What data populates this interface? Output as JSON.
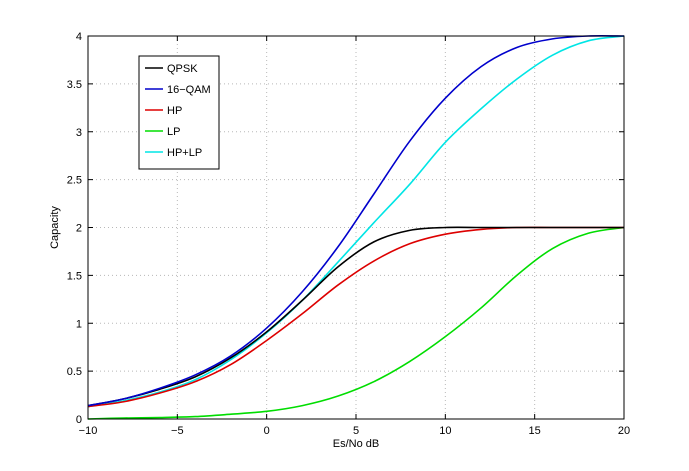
{
  "chart_data": {
    "type": "line",
    "title": "",
    "xlabel": "Es/No dB",
    "ylabel": "Capacity",
    "xlim": [
      -10,
      20
    ],
    "ylim": [
      0,
      4
    ],
    "xticks": [
      -10,
      -5,
      0,
      5,
      10,
      15,
      20
    ],
    "yticks": [
      0,
      0.5,
      1,
      1.5,
      2,
      2.5,
      3,
      3.5,
      4
    ],
    "xtick_labels": [
      "−10",
      "−5",
      "0",
      "5",
      "10",
      "15",
      "20"
    ],
    "ytick_labels": [
      "0",
      "0.5",
      "1",
      "1.5",
      "2",
      "2.5",
      "3",
      "3.5",
      "4"
    ],
    "grid": true,
    "legend_position": "top-left",
    "x": [
      -10,
      -8,
      -6,
      -4,
      -2,
      0,
      2,
      4,
      6,
      8,
      10,
      12,
      14,
      16,
      18,
      20
    ],
    "series": [
      {
        "name": "QPSK",
        "color": "#000000",
        "values": [
          0.14,
          0.21,
          0.31,
          0.44,
          0.64,
          0.91,
          1.24,
          1.59,
          1.85,
          1.97,
          2.0,
          2.0,
          2.0,
          2.0,
          2.0,
          2.0
        ]
      },
      {
        "name": "16−QAM",
        "color": "#0000cc",
        "values": [
          0.14,
          0.21,
          0.32,
          0.46,
          0.66,
          0.95,
          1.33,
          1.8,
          2.35,
          2.9,
          3.35,
          3.68,
          3.88,
          3.97,
          4.0,
          4.0
        ]
      },
      {
        "name": "HP",
        "color": "#dd0000",
        "values": [
          0.13,
          0.18,
          0.27,
          0.39,
          0.57,
          0.82,
          1.1,
          1.4,
          1.65,
          1.83,
          1.93,
          1.98,
          2.0,
          2.0,
          2.0,
          2.0
        ]
      },
      {
        "name": "LP",
        "color": "#00dd00",
        "values": [
          0.0,
          0.01,
          0.015,
          0.025,
          0.05,
          0.08,
          0.14,
          0.24,
          0.39,
          0.6,
          0.86,
          1.16,
          1.5,
          1.78,
          1.94,
          2.0
        ]
      },
      {
        "name": "HP+LP",
        "color": "#00e5e5",
        "values": [
          0.13,
          0.19,
          0.28,
          0.41,
          0.62,
          0.9,
          1.24,
          1.64,
          2.05,
          2.45,
          2.89,
          3.24,
          3.55,
          3.8,
          3.95,
          4.0
        ]
      }
    ]
  }
}
